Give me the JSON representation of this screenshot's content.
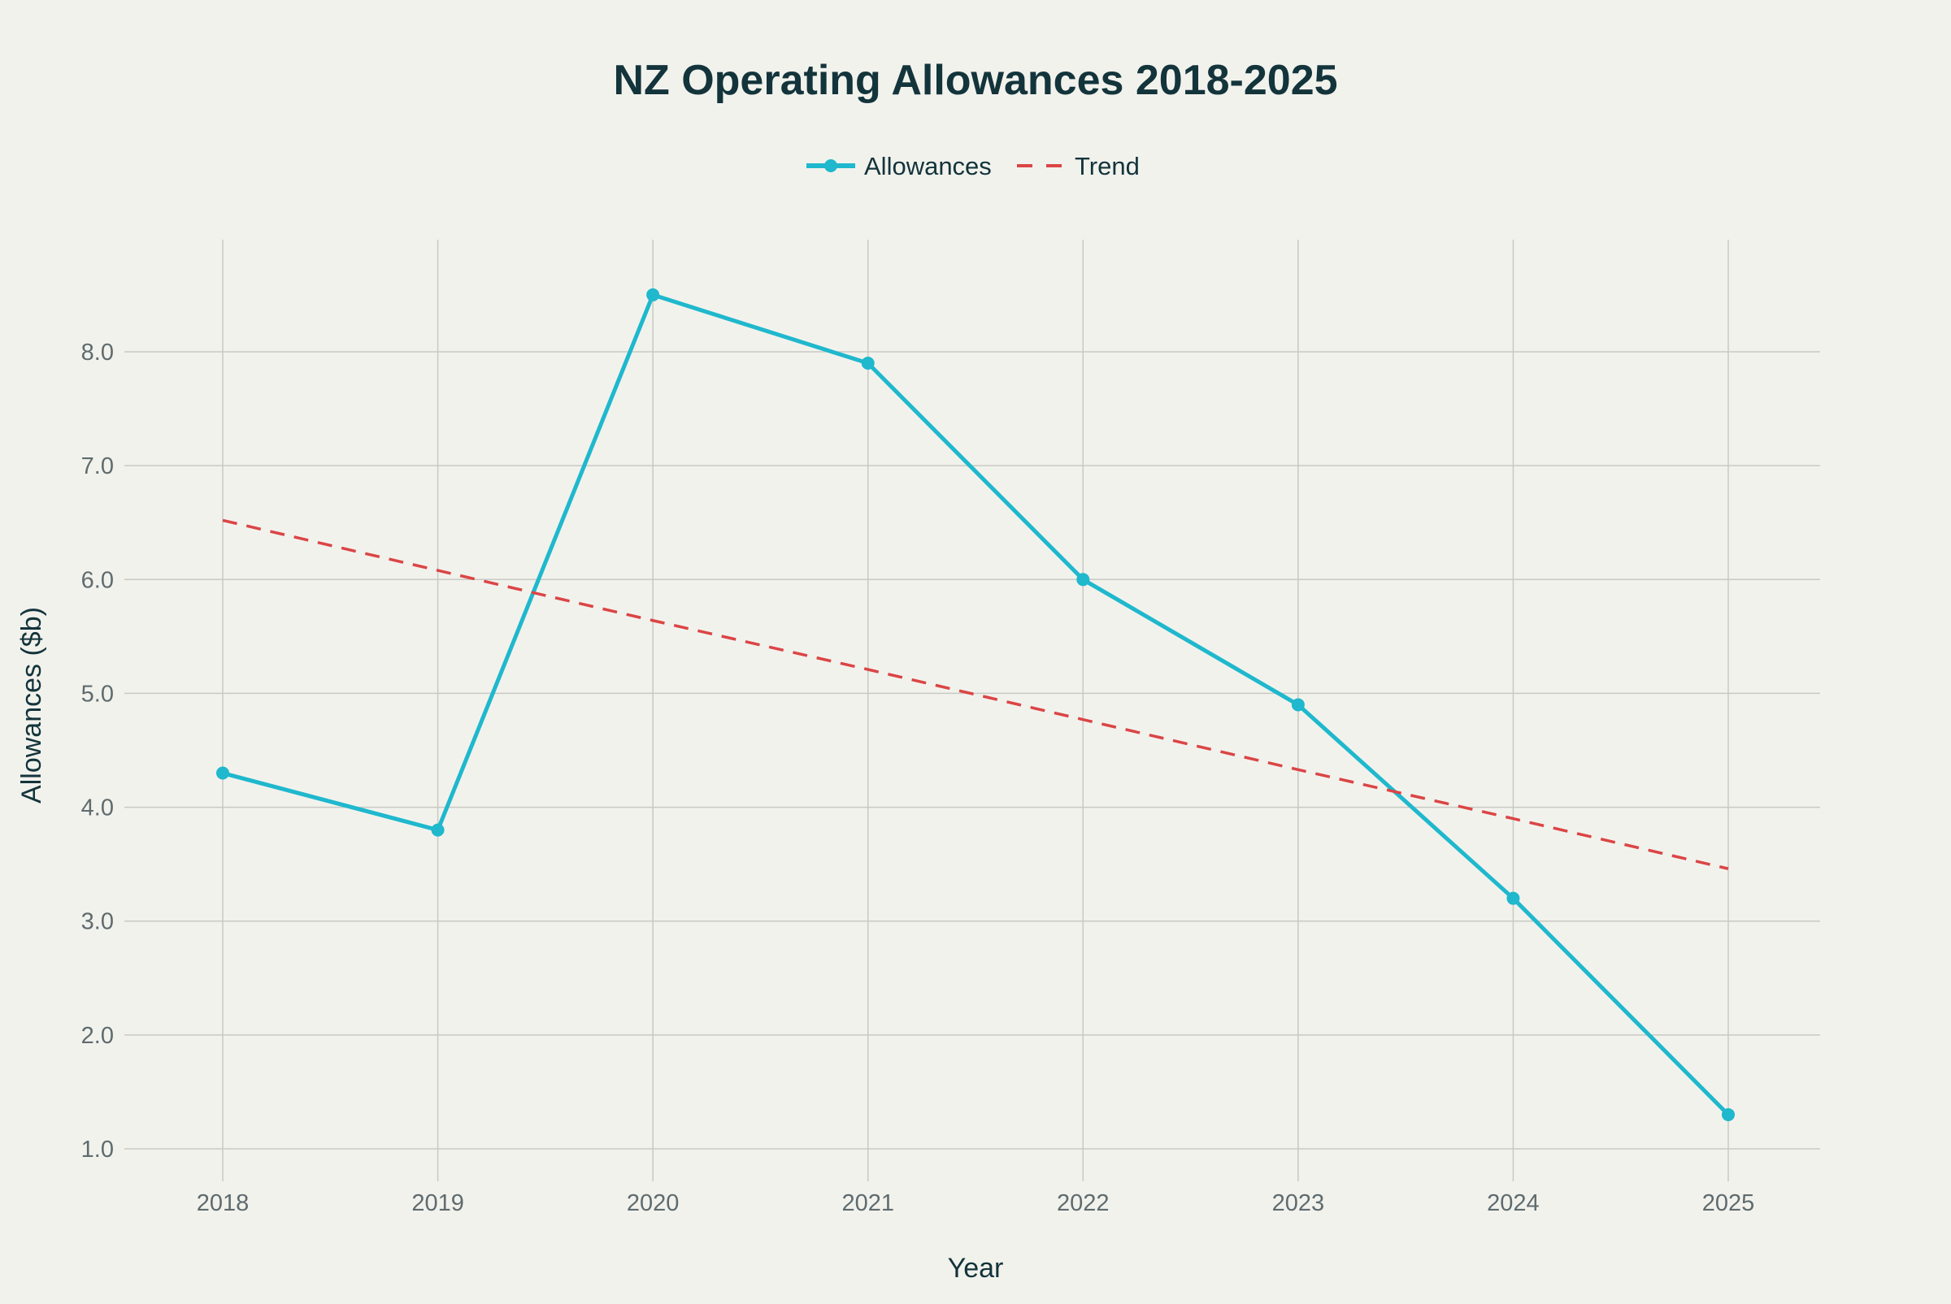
{
  "chart_data": {
    "type": "line",
    "title": "NZ Operating Allowances 2018-2025",
    "xlabel": "Year",
    "ylabel": "Allowances ($b)",
    "categories": [
      "2018",
      "2019",
      "2020",
      "2021",
      "2022",
      "2023",
      "2024",
      "2025"
    ],
    "series": [
      {
        "name": "Allowances",
        "values": [
          4.3,
          3.8,
          8.5,
          7.9,
          6.0,
          4.9,
          3.2,
          1.3
        ],
        "color": "#1fb8cd",
        "style": "solid-markers"
      },
      {
        "name": "Trend",
        "values": [
          6.52,
          6.08,
          5.64,
          5.21,
          4.77,
          4.33,
          3.9,
          3.46
        ],
        "color": "#db4545",
        "style": "dashed"
      }
    ],
    "yticks": [
      "1.0",
      "2.0",
      "3.0",
      "4.0",
      "5.0",
      "6.0",
      "7.0",
      "8.0"
    ],
    "ytick_values": [
      1,
      2,
      3,
      4,
      5,
      6,
      7,
      8
    ],
    "ylim": [
      0.7,
      9.5
    ],
    "grid": true,
    "legend": "top-center"
  }
}
